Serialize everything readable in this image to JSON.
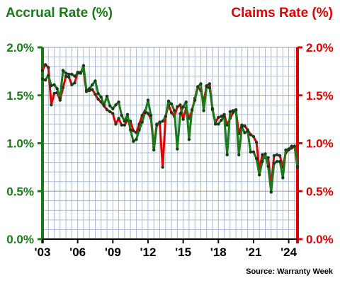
{
  "colors": {
    "accrual": "#1a7a1a",
    "claims": "#dd0000",
    "grid": "#a9bdd8",
    "axis_text": "#000000"
  },
  "chart_data": {
    "type": "line",
    "title_left": "Accrual Rate (%)",
    "title_right": "Claims Rate (%)",
    "source": "Source: Warranty Week",
    "ylim": [
      0,
      2
    ],
    "y_ticks": [
      "0.0%",
      "0.5%",
      "1.0%",
      "1.5%",
      "2.0%"
    ],
    "x_ticks": [
      "'03",
      "'06",
      "'09",
      "'12",
      "'15",
      "'18",
      "'21",
      "'24"
    ],
    "x_tick_years": [
      2003,
      2006,
      2009,
      2012,
      2015,
      2018,
      2021,
      2024
    ],
    "x_range": [
      2003.0,
      2024.75
    ],
    "grid": true,
    "series": [
      {
        "name": "Accrual Rate (%)",
        "axis": "left",
        "color": "#1a7a1a",
        "x": [
          2003.0,
          2003.25,
          2003.5,
          2003.75,
          2004.0,
          2004.25,
          2004.5,
          2004.75,
          2005.0,
          2005.25,
          2005.5,
          2005.75,
          2006.0,
          2006.25,
          2006.5,
          2006.75,
          2007.0,
          2007.25,
          2007.5,
          2007.75,
          2008.0,
          2008.25,
          2008.5,
          2008.75,
          2009.0,
          2009.25,
          2009.5,
          2009.75,
          2010.0,
          2010.25,
          2010.5,
          2010.75,
          2011.0,
          2011.25,
          2011.5,
          2011.75,
          2012.0,
          2012.25,
          2012.5,
          2012.75,
          2013.0,
          2013.25,
          2013.5,
          2013.75,
          2014.0,
          2014.25,
          2014.5,
          2014.75,
          2015.0,
          2015.25,
          2015.5,
          2015.75,
          2016.0,
          2016.25,
          2016.5,
          2016.75,
          2017.0,
          2017.25,
          2017.5,
          2017.75,
          2018.0,
          2018.25,
          2018.5,
          2018.75,
          2019.0,
          2019.25,
          2019.5,
          2019.75,
          2020.0,
          2020.25,
          2020.5,
          2020.75,
          2021.0,
          2021.25,
          2021.5,
          2021.75,
          2022.0,
          2022.25,
          2022.5,
          2022.75,
          2023.0,
          2023.25,
          2023.5,
          2023.75,
          2024.0,
          2024.25,
          2024.5,
          2024.75
        ],
        "values": [
          1.67,
          1.66,
          1.71,
          1.6,
          1.61,
          1.57,
          1.47,
          1.76,
          1.73,
          1.72,
          1.72,
          1.7,
          1.73,
          1.73,
          1.81,
          1.55,
          1.57,
          1.61,
          1.65,
          1.52,
          1.48,
          1.4,
          1.49,
          1.39,
          1.36,
          1.4,
          1.43,
          1.29,
          1.23,
          1.3,
          1.14,
          1.02,
          1.04,
          1.14,
          1.22,
          1.32,
          1.45,
          1.29,
          0.93,
          1.19,
          1.22,
          1.23,
          1.28,
          1.44,
          1.41,
          1.34,
          0.94,
          1.31,
          1.38,
          1.43,
          1.04,
          1.35,
          1.45,
          1.59,
          1.62,
          1.34,
          1.59,
          1.58,
          1.36,
          1.2,
          1.2,
          1.24,
          1.28,
          0.88,
          1.33,
          1.34,
          1.35,
          0.88,
          1.17,
          1.11,
          1.13,
          0.91,
          0.91,
          0.84,
          0.67,
          0.81,
          0.89,
          0.76,
          0.49,
          0.79,
          0.81,
          0.81,
          0.64,
          0.93,
          0.94,
          0.97,
          0.97,
          0.76
        ]
      },
      {
        "name": "Claims Rate (%)",
        "axis": "right",
        "color": "#dd0000",
        "x": [
          2003.0,
          2003.25,
          2003.5,
          2003.75,
          2004.0,
          2004.25,
          2004.5,
          2004.75,
          2005.0,
          2005.25,
          2005.5,
          2005.75,
          2006.0,
          2006.25,
          2006.5,
          2006.75,
          2007.0,
          2007.25,
          2007.5,
          2007.75,
          2008.0,
          2008.25,
          2008.5,
          2008.75,
          2009.0,
          2009.25,
          2009.5,
          2009.75,
          2010.0,
          2010.25,
          2010.5,
          2010.75,
          2011.0,
          2011.25,
          2011.5,
          2011.75,
          2012.0,
          2012.25,
          2012.5,
          2012.75,
          2013.0,
          2013.25,
          2013.5,
          2013.75,
          2014.0,
          2014.25,
          2014.5,
          2014.75,
          2015.0,
          2015.25,
          2015.5,
          2015.75,
          2016.0,
          2016.25,
          2016.5,
          2016.75,
          2017.0,
          2017.25,
          2017.5,
          2017.75,
          2018.0,
          2018.25,
          2018.5,
          2018.75,
          2019.0,
          2019.25,
          2019.5,
          2019.75,
          2020.0,
          2020.25,
          2020.5,
          2020.75,
          2021.0,
          2021.25,
          2021.5,
          2021.75,
          2022.0,
          2022.25,
          2022.5,
          2022.75,
          2023.0,
          2023.25,
          2023.5,
          2023.75,
          2024.0,
          2024.25,
          2024.5,
          2024.75
        ],
        "values": [
          1.76,
          1.82,
          1.79,
          1.4,
          1.52,
          1.53,
          1.45,
          1.58,
          1.7,
          1.69,
          1.61,
          1.63,
          1.74,
          1.74,
          1.76,
          1.54,
          1.55,
          1.56,
          1.51,
          1.46,
          1.43,
          1.39,
          1.35,
          1.33,
          1.31,
          1.2,
          1.26,
          1.19,
          1.19,
          1.24,
          1.23,
          1.13,
          1.11,
          1.2,
          1.29,
          1.34,
          1.31,
          1.26,
          0.96,
          1.2,
          1.21,
          0.75,
          1.28,
          1.4,
          1.32,
          1.28,
          1.38,
          1.4,
          1.25,
          1.37,
          1.26,
          1.34,
          1.47,
          1.59,
          1.55,
          1.43,
          1.6,
          1.62,
          1.35,
          1.22,
          1.27,
          1.28,
          1.3,
          1.19,
          1.26,
          1.32,
          1.34,
          1.1,
          1.19,
          1.18,
          1.14,
          1.09,
          1.07,
          1.01,
          0.73,
          0.88,
          0.85,
          0.85,
          0.55,
          0.87,
          0.88,
          0.87,
          0.75,
          0.9,
          0.93,
          0.95,
          0.97,
          0.75
        ]
      }
    ]
  }
}
